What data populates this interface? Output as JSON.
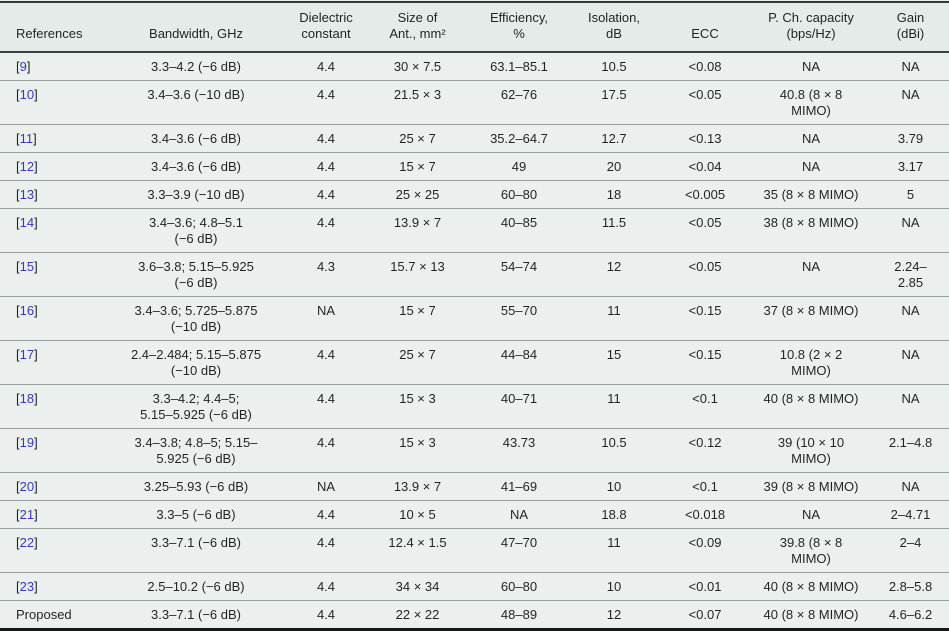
{
  "colors": {
    "page_bg": "#ebf0ee",
    "header_bg": "#e5ebe9",
    "text": "#1f2422",
    "citation_blue": "#3238c2",
    "row_line": "#97a09d",
    "top_border": "#343937",
    "header_line": "#3c413f",
    "bottom_border": "#151917"
  },
  "table": {
    "citation_brackets": {
      "open": "[",
      "close": "]"
    },
    "columns": [
      {
        "id": "references",
        "label": "References"
      },
      {
        "id": "bandwidth",
        "label": "Bandwidth, GHz"
      },
      {
        "id": "dielectric",
        "label": "Dielectric\nconstant"
      },
      {
        "id": "size",
        "label": "Size of\nAnt., mm²"
      },
      {
        "id": "efficiency",
        "label": "Efficiency,\n%"
      },
      {
        "id": "isolation",
        "label": "Isolation,\ndB"
      },
      {
        "id": "ecc",
        "label": "ECC"
      },
      {
        "id": "capacity",
        "label": "P. Ch. capacity\n(bps/Hz)"
      },
      {
        "id": "gain",
        "label": "Gain\n(dBi)"
      }
    ],
    "rows": [
      {
        "reference": "9",
        "is_citation": true,
        "bandwidth": "3.3–4.2 (−6 dB)",
        "dielectric": "4.4",
        "size": "30 × 7.5",
        "efficiency": "63.1–85.1",
        "isolation": "10.5",
        "ecc": "<0.08",
        "capacity": "NA",
        "gain": "NA"
      },
      {
        "reference": "10",
        "is_citation": true,
        "bandwidth": "3.4–3.6 (−10 dB)",
        "dielectric": "4.4",
        "size": "21.5 × 3",
        "efficiency": "62–76",
        "isolation": "17.5",
        "ecc": "<0.05",
        "capacity": "40.8 (8 × 8\nMIMO)",
        "gain": "NA"
      },
      {
        "reference": "11",
        "is_citation": true,
        "bandwidth": "3.4–3.6 (−6 dB)",
        "dielectric": "4.4",
        "size": "25 × 7",
        "efficiency": "35.2–64.7",
        "isolation": "12.7",
        "ecc": "<0.13",
        "capacity": "NA",
        "gain": "3.79"
      },
      {
        "reference": "12",
        "is_citation": true,
        "bandwidth": "3.4–3.6 (−6 dB)",
        "dielectric": "4.4",
        "size": "15 × 7",
        "efficiency": "49",
        "isolation": "20",
        "ecc": "<0.04",
        "capacity": "NA",
        "gain": "3.17"
      },
      {
        "reference": "13",
        "is_citation": true,
        "bandwidth": "3.3–3.9 (−10 dB)",
        "dielectric": "4.4",
        "size": "25 × 25",
        "efficiency": "60–80",
        "isolation": "18",
        "ecc": "<0.005",
        "capacity": "35 (8 × 8 MIMO)",
        "gain": "5"
      },
      {
        "reference": "14",
        "is_citation": true,
        "bandwidth": "3.4–3.6; 4.8–5.1\n(−6 dB)",
        "dielectric": "4.4",
        "size": "13.9 × 7",
        "efficiency": "40–85",
        "isolation": "11.5",
        "ecc": "<0.05",
        "capacity": "38 (8 × 8 MIMO)",
        "gain": "NA"
      },
      {
        "reference": "15",
        "is_citation": true,
        "bandwidth": "3.6–3.8; 5.15–5.925\n(−6 dB)",
        "dielectric": "4.3",
        "size": "15.7 × 13",
        "efficiency": "54–74",
        "isolation": "12",
        "ecc": "<0.05",
        "capacity": "NA",
        "gain": "2.24–\n2.85"
      },
      {
        "reference": "16",
        "is_citation": true,
        "bandwidth": "3.4–3.6; 5.725–5.875\n(−10 dB)",
        "dielectric": "NA",
        "size": "15 × 7",
        "efficiency": "55–70",
        "isolation": "11",
        "ecc": "<0.15",
        "capacity": "37 (8 × 8 MIMO)",
        "gain": "NA"
      },
      {
        "reference": "17",
        "is_citation": true,
        "bandwidth": "2.4–2.484; 5.15–5.875\n(−10 dB)",
        "dielectric": "4.4",
        "size": "25 × 7",
        "efficiency": "44–84",
        "isolation": "15",
        "ecc": "<0.15",
        "capacity": "10.8 (2 × 2\nMIMO)",
        "gain": "NA"
      },
      {
        "reference": "18",
        "is_citation": true,
        "bandwidth": "3.3–4.2; 4.4–5;\n5.15–5.925 (−6 dB)",
        "dielectric": "4.4",
        "size": "15 × 3",
        "efficiency": "40–71",
        "isolation": "11",
        "ecc": "<0.1",
        "capacity": "40 (8 × 8 MIMO)",
        "gain": "NA"
      },
      {
        "reference": "19",
        "is_citation": true,
        "bandwidth": "3.4–3.8; 4.8–5; 5.15–\n5.925 (−6 dB)",
        "dielectric": "4.4",
        "size": "15 × 3",
        "efficiency": "43.73",
        "isolation": "10.5",
        "ecc": "<0.12",
        "capacity": "39 (10 × 10\nMIMO)",
        "gain": "2.1–4.8"
      },
      {
        "reference": "20",
        "is_citation": true,
        "bandwidth": "3.25–5.93 (−6 dB)",
        "dielectric": "NA",
        "size": "13.9 × 7",
        "efficiency": "41–69",
        "isolation": "10",
        "ecc": "<0.1",
        "capacity": "39 (8 × 8 MIMO)",
        "gain": "NA"
      },
      {
        "reference": "21",
        "is_citation": true,
        "bandwidth": "3.3–5 (−6 dB)",
        "dielectric": "4.4",
        "size": "10 × 5",
        "efficiency": "NA",
        "isolation": "18.8",
        "ecc": "<0.018",
        "capacity": "NA",
        "gain": "2–4.71"
      },
      {
        "reference": "22",
        "is_citation": true,
        "bandwidth": "3.3–7.1 (−6 dB)",
        "dielectric": "4.4",
        "size": "12.4 × 1.5",
        "efficiency": "47–70",
        "isolation": "11",
        "ecc": "<0.09",
        "capacity": "39.8 (8 × 8\nMIMO)",
        "gain": "2–4"
      },
      {
        "reference": "23",
        "is_citation": true,
        "bandwidth": "2.5–10.2 (−6 dB)",
        "dielectric": "4.4",
        "size": "34 × 34",
        "efficiency": "60–80",
        "isolation": "10",
        "ecc": "<0.01",
        "capacity": "40 (8 × 8 MIMO)",
        "gain": "2.8–5.8"
      },
      {
        "reference": "Proposed",
        "is_citation": false,
        "bandwidth": "3.3–7.1 (−6 dB)",
        "dielectric": "4.4",
        "size": "22 × 22",
        "efficiency": "48–89",
        "isolation": "12",
        "ecc": "<0.07",
        "capacity": "40 (8 × 8 MIMO)",
        "gain": "4.6–6.2"
      }
    ]
  }
}
